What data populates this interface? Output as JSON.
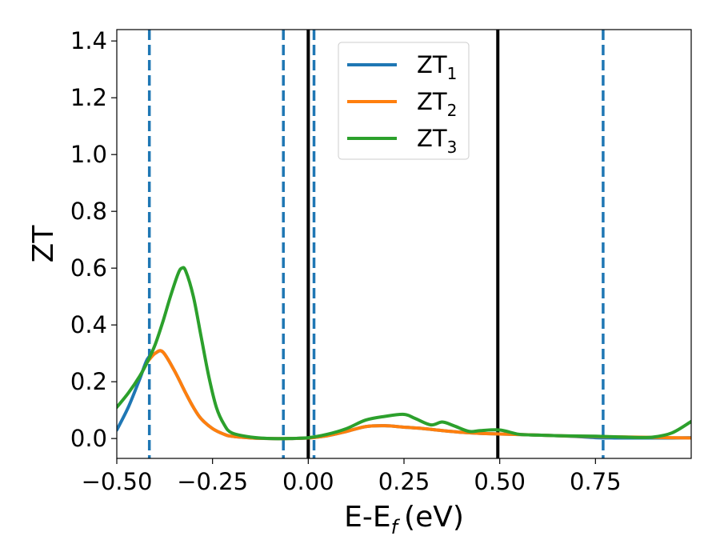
{
  "chart_data": {
    "type": "line",
    "title": "",
    "xlabel": "E-E",
    "xlabel_sub": "f",
    "xlabel_unit": "(eV)",
    "ylabel": "ZT",
    "xlim": [
      -0.5,
      1.0
    ],
    "ylim": [
      -0.07,
      1.44
    ],
    "xticks": [
      -0.5,
      -0.25,
      0.0,
      0.25,
      0.5,
      0.75
    ],
    "xtick_labels": [
      "−0.50",
      "−0.25",
      "0.00",
      "0.25",
      "0.50",
      "0.75"
    ],
    "yticks": [
      0.0,
      0.2,
      0.4,
      0.6,
      0.8,
      1.0,
      1.2,
      1.4
    ],
    "ytick_labels": [
      "0.0",
      "0.2",
      "0.4",
      "0.6",
      "0.8",
      "1.0",
      "1.2",
      "1.4"
    ],
    "grid": false,
    "legend_position": "top-center",
    "vertical_lines": [
      {
        "x": -0.415,
        "style": "dashed",
        "color": "#1f77b4"
      },
      {
        "x": -0.065,
        "style": "dashed",
        "color": "#1f77b4"
      },
      {
        "x": 0.015,
        "style": "dashed",
        "color": "#1f77b4"
      },
      {
        "x": 0.77,
        "style": "dashed",
        "color": "#1f77b4"
      },
      {
        "x": 0.0,
        "style": "solid",
        "color": "#000000"
      },
      {
        "x": 0.495,
        "style": "solid",
        "color": "#000000"
      }
    ],
    "series": [
      {
        "name": "ZT",
        "name_sub": "1",
        "color": "#1f77b4",
        "x": [
          -0.5,
          -0.47,
          -0.44,
          -0.42,
          -0.4,
          -0.38,
          -0.35,
          -0.32,
          -0.3,
          -0.28,
          -0.25,
          -0.22,
          -0.2,
          -0.15,
          -0.1,
          -0.05,
          0.0,
          0.05,
          0.1,
          0.15,
          0.2,
          0.25,
          0.3,
          0.35,
          0.4,
          0.45,
          0.5,
          0.55,
          0.6,
          0.65,
          0.7,
          0.75,
          0.8,
          0.85,
          0.9,
          0.95,
          1.0
        ],
        "y": [
          0.03,
          0.11,
          0.21,
          0.28,
          0.3,
          0.305,
          0.24,
          0.16,
          0.11,
          0.07,
          0.035,
          0.015,
          0.008,
          0.002,
          0.0,
          0.0,
          0.002,
          0.01,
          0.025,
          0.042,
          0.045,
          0.04,
          0.035,
          0.028,
          0.022,
          0.018,
          0.016,
          0.014,
          0.012,
          0.01,
          0.007,
          0.003,
          0.002,
          0.002,
          0.002,
          0.002,
          0.003
        ]
      },
      {
        "name": "ZT",
        "name_sub": "2",
        "color": "#ff7f0e",
        "x": [
          -0.42,
          -0.4,
          -0.38,
          -0.35,
          -0.32,
          -0.3,
          -0.28,
          -0.25,
          -0.22,
          -0.2,
          -0.15,
          -0.1,
          -0.05,
          0.0,
          0.05,
          0.1,
          0.15,
          0.2,
          0.25,
          0.3,
          0.35,
          0.4,
          0.45,
          0.5,
          0.55,
          0.6,
          0.65,
          0.7,
          0.75,
          0.8,
          0.85,
          0.9,
          0.95,
          1.0
        ],
        "y": [
          0.27,
          0.3,
          0.305,
          0.24,
          0.16,
          0.11,
          0.07,
          0.035,
          0.015,
          0.008,
          0.002,
          0.0,
          0.0,
          0.002,
          0.01,
          0.025,
          0.042,
          0.045,
          0.04,
          0.035,
          0.028,
          0.022,
          0.018,
          0.016,
          0.014,
          0.012,
          0.01,
          0.008,
          0.007,
          0.006,
          0.005,
          0.004,
          0.003,
          0.002
        ]
      },
      {
        "name": "ZT",
        "name_sub": "3",
        "color": "#2ca02c",
        "x": [
          -0.5,
          -0.47,
          -0.44,
          -0.42,
          -0.4,
          -0.38,
          -0.36,
          -0.34,
          -0.33,
          -0.32,
          -0.3,
          -0.28,
          -0.26,
          -0.24,
          -0.22,
          -0.2,
          -0.15,
          -0.1,
          -0.05,
          0.0,
          0.05,
          0.1,
          0.15,
          0.2,
          0.25,
          0.28,
          0.32,
          0.35,
          0.38,
          0.42,
          0.45,
          0.5,
          0.55,
          0.6,
          0.65,
          0.7,
          0.75,
          0.8,
          0.85,
          0.9,
          0.95,
          1.0
        ],
        "y": [
          0.11,
          0.16,
          0.22,
          0.27,
          0.33,
          0.41,
          0.5,
          0.58,
          0.6,
          0.59,
          0.5,
          0.36,
          0.22,
          0.11,
          0.05,
          0.02,
          0.005,
          0.0,
          0.0,
          0.003,
          0.015,
          0.035,
          0.065,
          0.078,
          0.085,
          0.07,
          0.048,
          0.058,
          0.045,
          0.025,
          0.028,
          0.03,
          0.015,
          0.012,
          0.01,
          0.009,
          0.008,
          0.006,
          0.004,
          0.005,
          0.02,
          0.06
        ]
      }
    ]
  }
}
